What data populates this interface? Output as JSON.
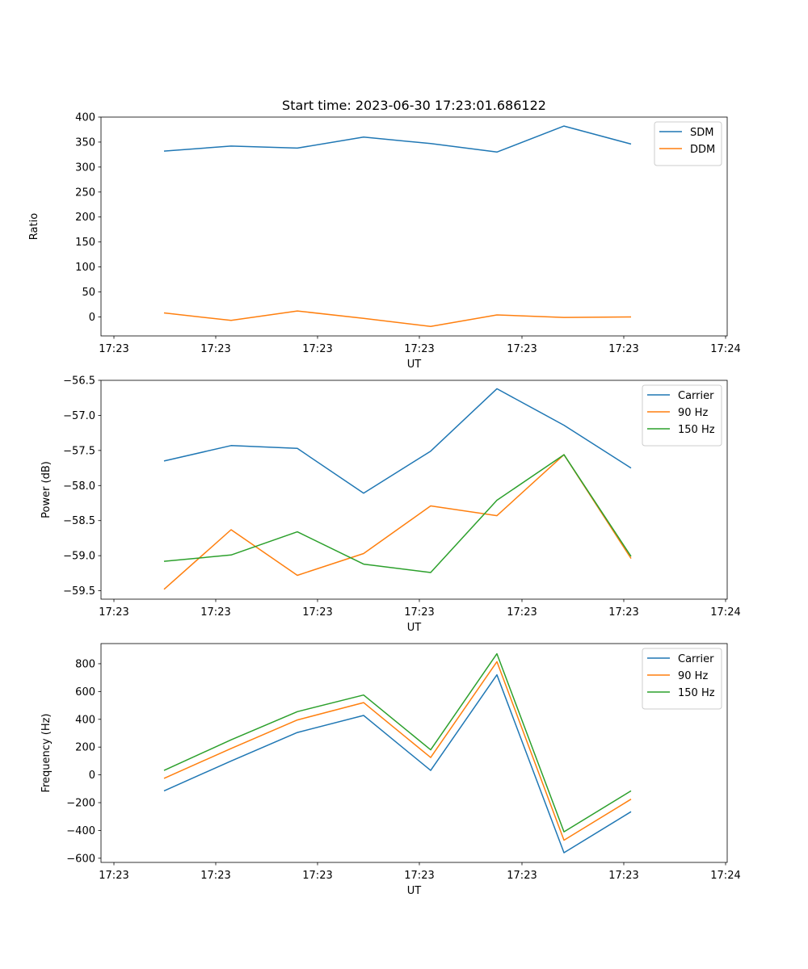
{
  "figure": {
    "title": "Start time: 2023-06-30 17:23:01.686122"
  },
  "chart_data": [
    {
      "type": "line",
      "title": "Start time: 2023-06-30 17:23:01.686122",
      "xlabel": "UT",
      "ylabel": "Ratio",
      "x_tick_labels": [
        "17:23",
        "17:23",
        "17:23",
        "17:23",
        "17:23",
        "17:23",
        "17:24"
      ],
      "y_ticks": [
        0,
        50,
        100,
        150,
        200,
        250,
        300,
        350,
        400
      ],
      "ylim": [
        -38,
        400
      ],
      "grid": false,
      "legend_position": "top-right",
      "colors": [
        "#1f77b4",
        "#ff7f0e"
      ],
      "series": [
        {
          "name": "SDM",
          "color": "#1f77b4",
          "values": [
            332,
            342,
            338,
            360,
            347,
            330,
            382,
            346
          ]
        },
        {
          "name": "DDM",
          "color": "#ff7f0e",
          "values": [
            8,
            -7,
            12,
            -3,
            -19,
            4,
            -1,
            0
          ]
        }
      ]
    },
    {
      "type": "line",
      "xlabel": "UT",
      "ylabel": "Power (dB)",
      "x_tick_labels": [
        "17:23",
        "17:23",
        "17:23",
        "17:23",
        "17:23",
        "17:23",
        "17:24"
      ],
      "y_ticks": [
        -59.5,
        -59.0,
        -58.5,
        -58.0,
        -57.5,
        -57.0,
        -56.5
      ],
      "y_tick_labels": [
        "−59.5",
        "−59.0",
        "−58.5",
        "−58.0",
        "−57.5",
        "−57.0",
        "−56.5"
      ],
      "ylim": [
        -59.62,
        -56.5
      ],
      "grid": false,
      "legend_position": "top-right",
      "series": [
        {
          "name": "Carrier",
          "color": "#1f77b4",
          "values": [
            -57.65,
            -57.43,
            -57.47,
            -58.11,
            -57.51,
            -56.62,
            -57.14,
            -57.75
          ]
        },
        {
          "name": "90 Hz",
          "color": "#ff7f0e",
          "values": [
            -59.48,
            -58.63,
            -59.28,
            -58.97,
            -58.29,
            -58.43,
            -57.56,
            -59.04
          ]
        },
        {
          "name": "150 Hz",
          "color": "#2ca02c",
          "values": [
            -59.08,
            -58.99,
            -58.66,
            -59.12,
            -59.24,
            -58.21,
            -57.56,
            -59.01
          ]
        }
      ]
    },
    {
      "type": "line",
      "xlabel": "UT",
      "ylabel": "Frequency (Hz)",
      "x_tick_labels": [
        "17:23",
        "17:23",
        "17:23",
        "17:23",
        "17:23",
        "17:23",
        "17:24"
      ],
      "y_ticks": [
        -600,
        -400,
        -200,
        0,
        200,
        400,
        600,
        800
      ],
      "y_tick_labels": [
        "−600",
        "−400",
        "−200",
        "0",
        "200",
        "400",
        "600",
        "800"
      ],
      "ylim": [
        -630,
        945
      ],
      "grid": false,
      "legend_position": "top-right",
      "series": [
        {
          "name": "Carrier",
          "color": "#1f77b4",
          "values": [
            -115,
            100,
            305,
            428,
            32,
            720,
            -560,
            -265
          ]
        },
        {
          "name": "90 Hz",
          "color": "#ff7f0e",
          "values": [
            -25,
            190,
            395,
            520,
            125,
            815,
            -470,
            -175
          ]
        },
        {
          "name": "150 Hz",
          "color": "#2ca02c",
          "values": [
            32,
            252,
            455,
            575,
            180,
            872,
            -410,
            -115
          ]
        }
      ]
    }
  ]
}
